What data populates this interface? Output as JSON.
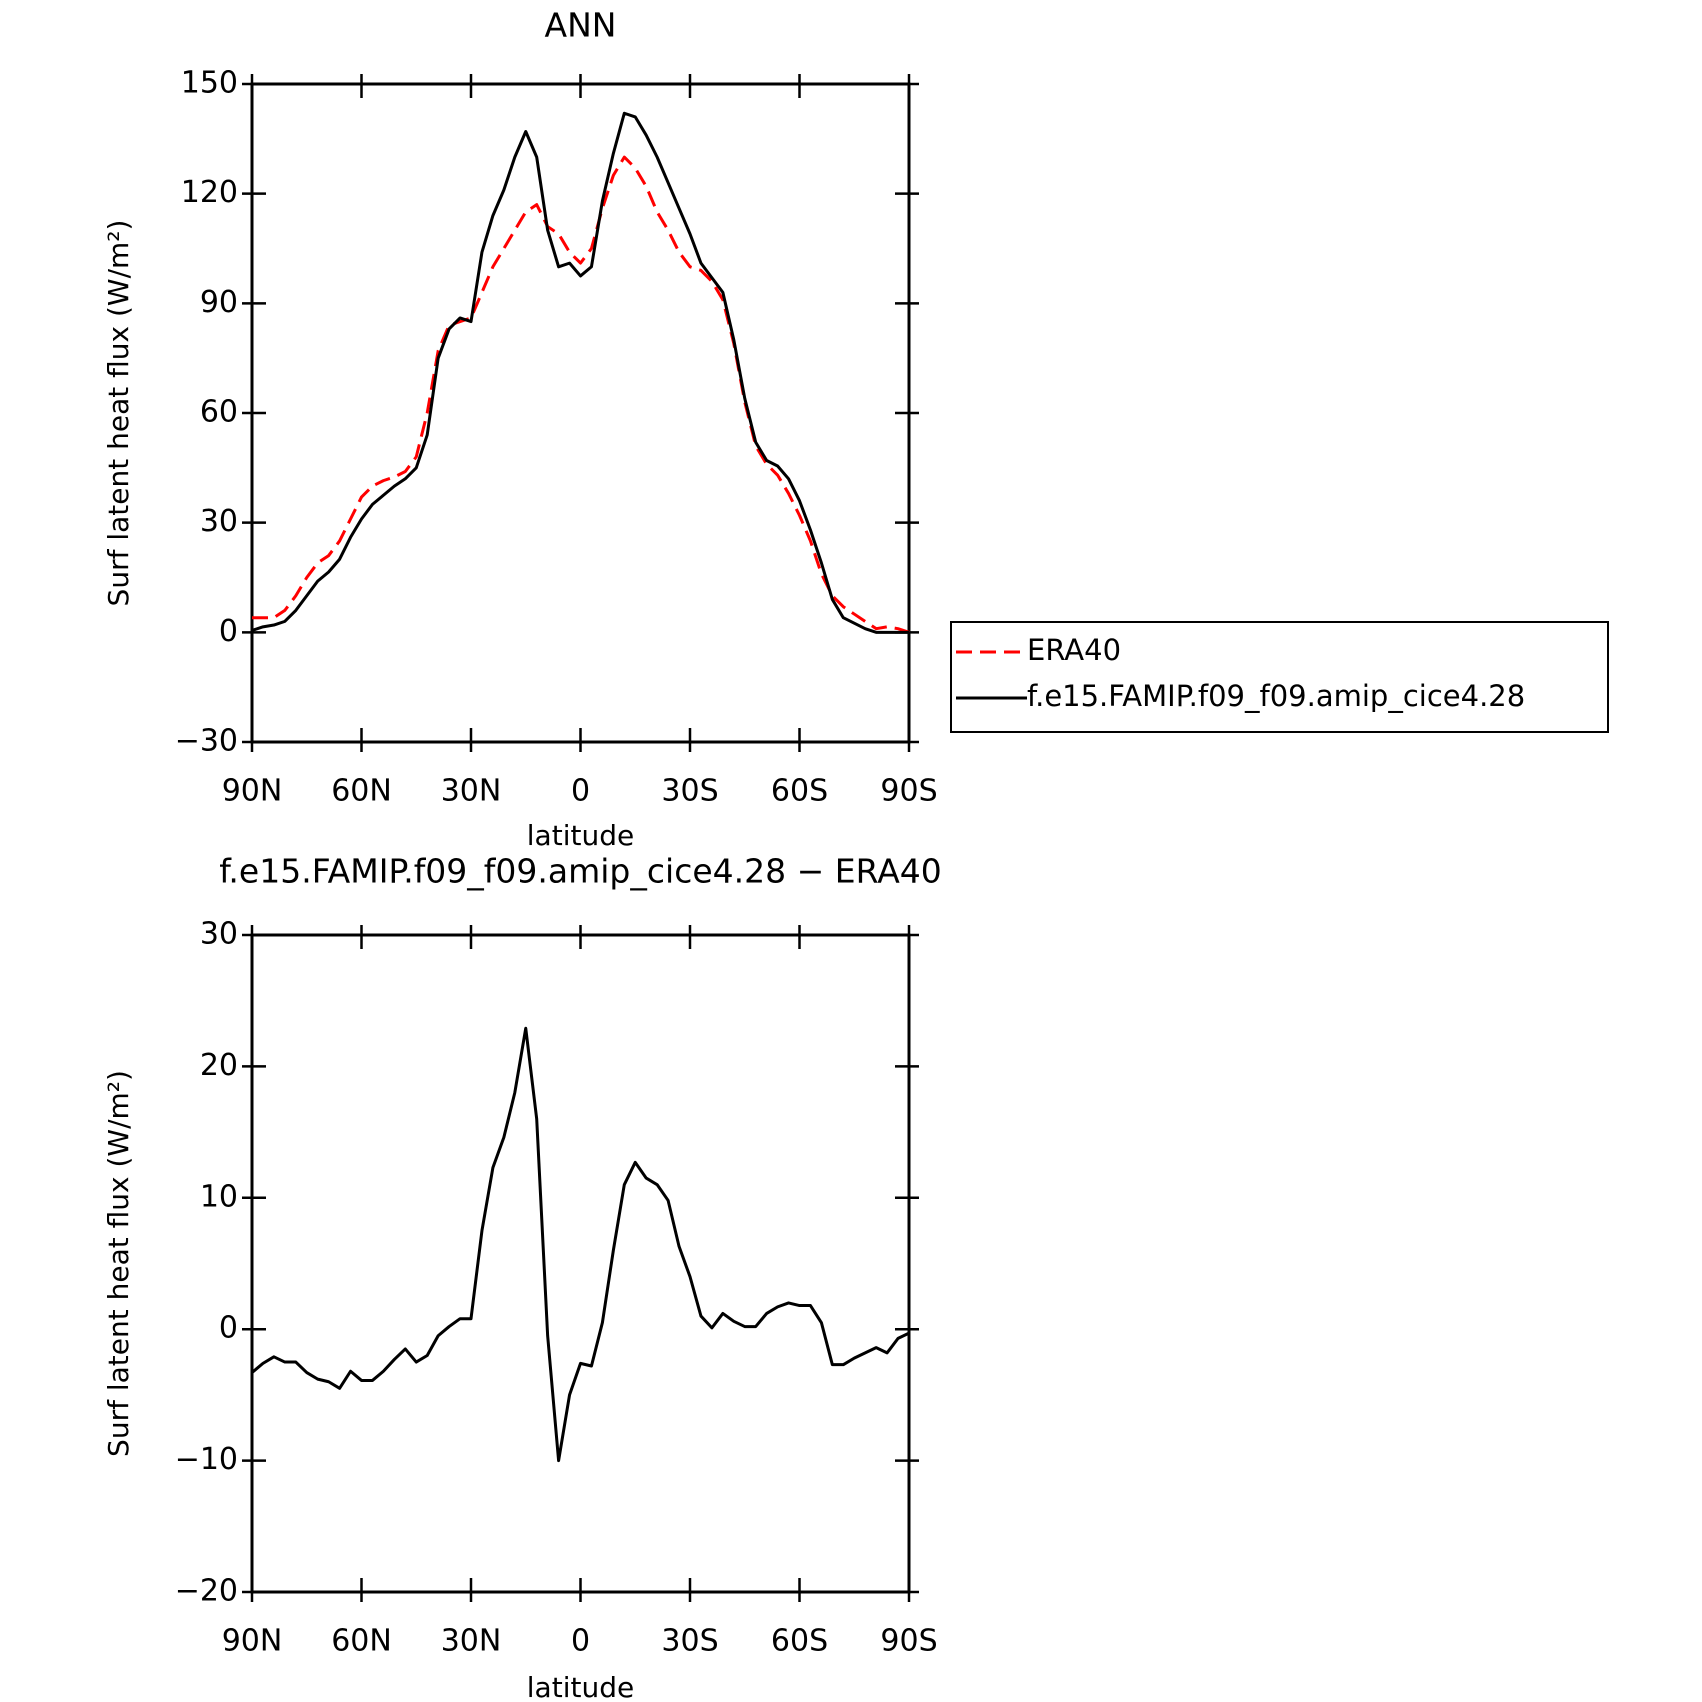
{
  "chart_data": [
    {
      "type": "line",
      "title": "ANN",
      "xlabel": "latitude",
      "ylabel": "Surf latent heat flux (W/m²)",
      "x": [
        90,
        87,
        84,
        81,
        78,
        75,
        72,
        69,
        66,
        63,
        60,
        57,
        54,
        51,
        48,
        45,
        42,
        39,
        36,
        33,
        30,
        27,
        24,
        21,
        18,
        15,
        12,
        9,
        6,
        3,
        0,
        -3,
        -6,
        -9,
        -12,
        -15,
        -18,
        -21,
        -24,
        -27,
        -30,
        -33,
        -36,
        -39,
        -42,
        -45,
        -48,
        -51,
        -54,
        -57,
        -60,
        -63,
        -66,
        -69,
        -72,
        -75,
        -78,
        -81,
        -84,
        -87,
        -90
      ],
      "series": [
        {
          "name": "ERA40",
          "color": "#ff0000",
          "line_style": "dashed",
          "values": [
            4,
            4,
            4,
            6,
            10,
            15,
            19,
            21,
            25,
            31,
            37,
            40,
            41.5,
            42.5,
            44,
            48,
            60,
            77,
            84,
            85,
            86,
            93,
            100,
            105,
            110,
            115,
            117,
            111,
            109,
            104,
            101,
            105,
            116,
            125,
            130,
            127,
            122,
            115,
            110,
            104,
            100,
            99,
            96,
            91,
            79,
            63,
            51,
            46,
            43,
            38,
            32,
            25,
            16,
            10,
            7,
            5,
            3,
            1,
            1.5,
            1,
            0
          ]
        },
        {
          "name": "f.e15.FAMIP.f09_f09.amip_cice4.28",
          "color": "#000000",
          "line_style": "solid",
          "values": [
            0.5,
            1.5,
            2,
            3,
            6,
            10,
            14,
            16.5,
            20,
            26,
            31,
            35,
            37.5,
            40,
            42,
            45,
            54,
            75,
            83,
            86,
            85,
            104,
            114,
            121,
            130,
            137,
            130,
            110,
            100,
            101,
            97.5,
            100,
            118,
            131,
            142,
            141,
            136,
            130,
            123,
            116,
            109,
            101,
            97,
            93,
            80,
            64,
            52,
            47,
            45.5,
            42,
            36,
            28,
            19,
            9,
            4,
            2.5,
            1,
            0,
            0,
            0,
            0
          ]
        }
      ],
      "xlim": [
        90,
        -90
      ],
      "xticks": [
        {
          "value": 90,
          "label": "90N"
        },
        {
          "value": 60,
          "label": "60N"
        },
        {
          "value": 30,
          "label": "30N"
        },
        0,
        {
          "value": -30,
          "label": "30S"
        },
        {
          "value": -60,
          "label": "60S"
        },
        {
          "value": -90,
          "label": "90S"
        }
      ],
      "ylim": [
        -30,
        150
      ],
      "yticks": [
        {
          "value": -30,
          "label": "−30"
        },
        0,
        30,
        60,
        90,
        120,
        150
      ],
      "legend": "right"
    },
    {
      "type": "line",
      "title": "f.e15.FAMIP.f09_f09.amip_cice4.28 − ERA40",
      "xlabel": "latitude",
      "ylabel": "Surf latent heat flux (W/m²)",
      "x": [
        90,
        87,
        84,
        81,
        78,
        75,
        72,
        69,
        66,
        63,
        60,
        57,
        54,
        51,
        48,
        45,
        42,
        39,
        36,
        33,
        30,
        27,
        24,
        21,
        18,
        15,
        12,
        9,
        6,
        3,
        0,
        -3,
        -6,
        -9,
        -12,
        -15,
        -18,
        -21,
        -24,
        -27,
        -30,
        -33,
        -36,
        -39,
        -42,
        -45,
        -48,
        -51,
        -54,
        -57,
        -60,
        -63,
        -66,
        -69,
        -72,
        -75,
        -78,
        -81,
        -84,
        -87,
        -90
      ],
      "color": "#000000",
      "values": [
        -3.3,
        -2.6,
        -2.1,
        -2.5,
        -2.5,
        -3.3,
        -3.8,
        -4,
        -4.5,
        -3.2,
        -3.9,
        -3.9,
        -3.2,
        -2.3,
        -1.5,
        -2.5,
        -2,
        -0.5,
        0.2,
        0.8,
        0.8,
        7.5,
        12.3,
        14.6,
        18,
        22.9,
        16,
        -0.5,
        -10,
        -5,
        -2.6,
        -2.8,
        0.5,
        6,
        11,
        12.7,
        11.5,
        11,
        9.8,
        6.3,
        4,
        1,
        0.1,
        1.2,
        0.6,
        0.2,
        0.2,
        1.2,
        1.7,
        2,
        1.8,
        1.8,
        0.5,
        -2.7,
        -2.7,
        -2.2,
        -1.8,
        -1.4,
        -1.8,
        -0.7,
        -0.3
      ],
      "xlim": [
        90,
        -90
      ],
      "xticks": [
        {
          "value": 90,
          "label": "90N"
        },
        {
          "value": 60,
          "label": "60N"
        },
        {
          "value": 30,
          "label": "30N"
        },
        0,
        {
          "value": -30,
          "label": "30S"
        },
        {
          "value": -60,
          "label": "60S"
        },
        {
          "value": -90,
          "label": "90S"
        }
      ],
      "ylim": [
        -20,
        30
      ],
      "yticks": [
        {
          "value": -20,
          "label": "−20"
        },
        {
          "value": -10,
          "label": "−10"
        },
        0,
        10,
        20,
        30
      ]
    }
  ]
}
